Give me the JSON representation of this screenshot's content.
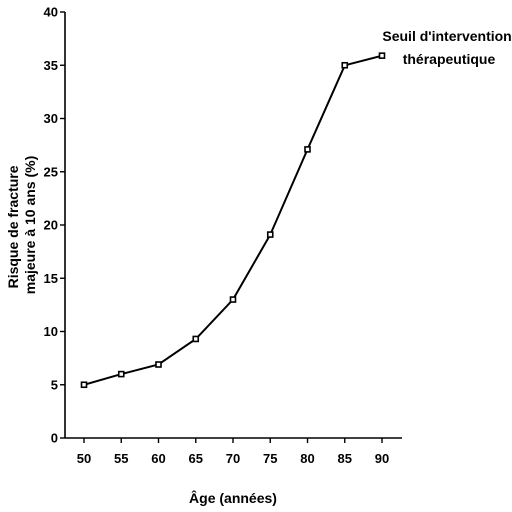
{
  "chart_data": {
    "type": "line",
    "title": "",
    "xlabel": "Âge (années)",
    "ylabel_lines": [
      "Risque de fracture",
      "majeure à 10 ans (%)"
    ],
    "x": [
      50,
      55,
      60,
      65,
      70,
      75,
      80,
      85,
      90
    ],
    "series": [
      {
        "values": [
          5,
          6,
          6.9,
          9.3,
          13,
          19.1,
          27.1,
          35,
          35.9
        ]
      }
    ],
    "xticks": [
      "50",
      "55",
      "60",
      "65",
      "70",
      "75",
      "80",
      "85",
      "90"
    ],
    "yticks": [
      "0",
      "5",
      "10",
      "15",
      "20",
      "25",
      "30",
      "35",
      "40"
    ],
    "xlim": [
      45,
      92.5
    ],
    "ylim": [
      0,
      40
    ],
    "grid": false,
    "legend": "none",
    "annotation_lines": [
      "Seuil d'intervention",
      "thérapeutique"
    ],
    "colors": {
      "line": "#000000",
      "marker_fill": "#ffffff"
    }
  }
}
